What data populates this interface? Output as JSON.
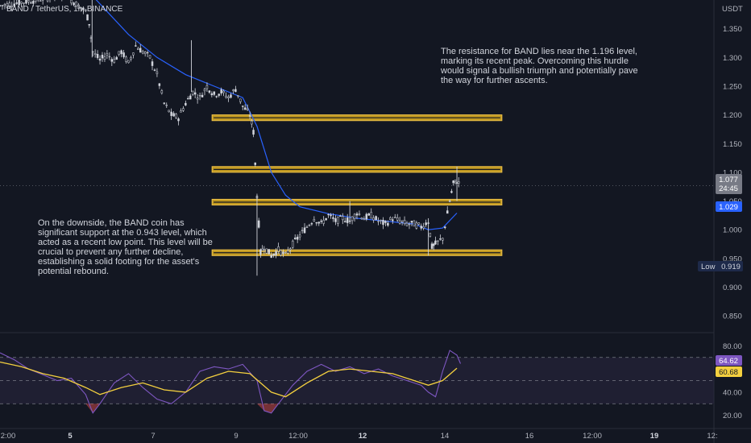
{
  "header": {
    "title": "BAND / TetherUS, 1h, BINANCE",
    "currency": "USDT"
  },
  "annotations": {
    "resistance_text": "The resistance for BAND lies near the 1.196 level, marking its recent peak. Overcoming this hurdle would signal a bullish triumph and potentially pave the way for further ascents.",
    "support_text": "On the downside, the BAND coin has significant support at the 0.943 level, which acted as a recent low point. This level will be crucial to prevent any further decline, establishing a solid footing for the asset's potential rebound."
  },
  "badges": {
    "price": "1.077",
    "countdown": "24:45",
    "ma": "1.029",
    "low_label": "Low",
    "low_value": "0.919",
    "rsi": "64.62",
    "rsi_ma": "60.68"
  },
  "colors": {
    "background": "#131722",
    "candle": "#d1d4dc",
    "ma_line": "#2962ff",
    "zone_fill": "#e0b021",
    "zone_border": "#f0c34a",
    "rsi_line": "#7e57c2",
    "rsi_ma": "#f4d03f",
    "rsi_band": "#2a2740"
  },
  "chart_data": {
    "type": "candlestick",
    "symbol": "BAND / TetherUS",
    "interval": "1h",
    "exchange": "BINANCE",
    "y_axis": {
      "ticks": [
        1.35,
        1.3,
        1.25,
        1.2,
        1.15,
        1.1,
        1.05,
        1.0,
        0.95,
        0.9,
        0.85
      ],
      "tick_labels": [
        "1.350",
        "1.300",
        "1.250",
        "1.200",
        "1.150",
        "1.100",
        "1.050",
        "1.000",
        "0.950",
        "0.900",
        "0.850"
      ],
      "range": [
        0.825,
        1.4
      ]
    },
    "x_axis": {
      "ticks": [
        {
          "label": "2:00",
          "bold": false
        },
        {
          "label": "5",
          "bold": true
        },
        {
          "label": "7",
          "bold": false
        },
        {
          "label": "9",
          "bold": false
        },
        {
          "label": "12:00",
          "bold": false
        },
        {
          "label": "12",
          "bold": true
        },
        {
          "label": "14",
          "bold": false
        },
        {
          "label": "16",
          "bold": false
        },
        {
          "label": "12:00",
          "bold": false
        },
        {
          "label": "19",
          "bold": true
        },
        {
          "label": "12:",
          "bold": false
        }
      ]
    },
    "price_path": [
      [
        0.0,
        1.39
      ],
      [
        0.05,
        1.4
      ],
      [
        0.09,
        1.41
      ],
      [
        0.12,
        1.38
      ],
      [
        0.125,
        1.36
      ],
      [
        0.13,
        1.31
      ],
      [
        0.14,
        1.295
      ],
      [
        0.15,
        1.305
      ],
      [
        0.16,
        1.295
      ],
      [
        0.17,
        1.31
      ],
      [
        0.18,
        1.29
      ],
      [
        0.19,
        1.32
      ],
      [
        0.2,
        1.31
      ],
      [
        0.21,
        1.3
      ],
      [
        0.22,
        1.27
      ],
      [
        0.23,
        1.22
      ],
      [
        0.24,
        1.2
      ],
      [
        0.25,
        1.195
      ],
      [
        0.26,
        1.22
      ],
      [
        0.27,
        1.24
      ],
      [
        0.28,
        1.23
      ],
      [
        0.29,
        1.25
      ],
      [
        0.3,
        1.235
      ],
      [
        0.31,
        1.24
      ],
      [
        0.32,
        1.23
      ],
      [
        0.33,
        1.245
      ],
      [
        0.34,
        1.215
      ],
      [
        0.35,
        1.2
      ],
      [
        0.355,
        1.17
      ],
      [
        0.36,
        1.06
      ],
      [
        0.365,
        0.96
      ],
      [
        0.37,
        0.97
      ],
      [
        0.38,
        0.955
      ],
      [
        0.39,
        0.965
      ],
      [
        0.4,
        0.955
      ],
      [
        0.41,
        0.975
      ],
      [
        0.42,
        0.99
      ],
      [
        0.43,
        1.005
      ],
      [
        0.44,
        1.02
      ],
      [
        0.45,
        1.01
      ],
      [
        0.46,
        1.025
      ],
      [
        0.47,
        1.015
      ],
      [
        0.48,
        1.02
      ],
      [
        0.49,
        1.015
      ],
      [
        0.5,
        1.03
      ],
      [
        0.51,
        1.02
      ],
      [
        0.52,
        1.025
      ],
      [
        0.53,
        1.015
      ],
      [
        0.54,
        1.01
      ],
      [
        0.55,
        1.02
      ],
      [
        0.56,
        1.015
      ],
      [
        0.57,
        1.01
      ],
      [
        0.58,
        1.01
      ],
      [
        0.59,
        1.005
      ],
      [
        0.6,
        1.015
      ],
      [
        0.605,
        0.97
      ],
      [
        0.61,
        0.975
      ],
      [
        0.62,
        0.985
      ],
      [
        0.63,
        1.05
      ],
      [
        0.635,
        1.08
      ],
      [
        0.64,
        1.085
      ],
      [
        0.645,
        1.077
      ]
    ],
    "moving_average_path": [
      [
        0.12,
        1.42
      ],
      [
        0.15,
        1.38
      ],
      [
        0.18,
        1.34
      ],
      [
        0.22,
        1.3
      ],
      [
        0.26,
        1.27
      ],
      [
        0.3,
        1.25
      ],
      [
        0.34,
        1.23
      ],
      [
        0.36,
        1.18
      ],
      [
        0.38,
        1.1
      ],
      [
        0.4,
        1.06
      ],
      [
        0.42,
        1.04
      ],
      [
        0.46,
        1.028
      ],
      [
        0.5,
        1.02
      ],
      [
        0.54,
        1.015
      ],
      [
        0.58,
        1.01
      ],
      [
        0.6,
        1.0
      ],
      [
        0.62,
        1.003
      ],
      [
        0.64,
        1.029
      ]
    ],
    "zones": [
      {
        "name": "resistance",
        "low": 1.19,
        "high": 1.2,
        "x_start": 0.297,
        "x_end": 0.703
      },
      {
        "name": "upper",
        "low": 1.1,
        "high": 1.11,
        "x_start": 0.297,
        "x_end": 0.703
      },
      {
        "name": "mid",
        "low": 1.043,
        "high": 1.053,
        "x_start": 0.297,
        "x_end": 0.703
      },
      {
        "name": "support",
        "low": 0.955,
        "high": 0.965,
        "x_start": 0.297,
        "x_end": 0.703
      }
    ],
    "rsi": {
      "ticks": [
        80,
        60,
        40,
        20
      ],
      "tick_labels": [
        "80.00",
        "60.00",
        "40.00",
        "20.00"
      ],
      "range": [
        10,
        90
      ],
      "band": [
        30,
        70
      ],
      "values": [
        [
          0.0,
          74
        ],
        [
          0.02,
          68
        ],
        [
          0.04,
          60
        ],
        [
          0.06,
          55
        ],
        [
          0.08,
          50
        ],
        [
          0.1,
          52
        ],
        [
          0.12,
          38
        ],
        [
          0.13,
          22
        ],
        [
          0.14,
          30
        ],
        [
          0.16,
          48
        ],
        [
          0.18,
          56
        ],
        [
          0.2,
          44
        ],
        [
          0.22,
          34
        ],
        [
          0.24,
          30
        ],
        [
          0.26,
          40
        ],
        [
          0.28,
          58
        ],
        [
          0.3,
          62
        ],
        [
          0.32,
          60
        ],
        [
          0.34,
          64
        ],
        [
          0.36,
          50
        ],
        [
          0.37,
          24
        ],
        [
          0.38,
          22
        ],
        [
          0.39,
          30
        ],
        [
          0.41,
          46
        ],
        [
          0.43,
          58
        ],
        [
          0.45,
          64
        ],
        [
          0.47,
          58
        ],
        [
          0.49,
          62
        ],
        [
          0.51,
          56
        ],
        [
          0.53,
          60
        ],
        [
          0.55,
          54
        ],
        [
          0.57,
          50
        ],
        [
          0.59,
          46
        ],
        [
          0.6,
          40
        ],
        [
          0.61,
          36
        ],
        [
          0.62,
          58
        ],
        [
          0.63,
          76
        ],
        [
          0.64,
          72
        ],
        [
          0.645,
          64.62
        ]
      ],
      "ma": [
        [
          0.0,
          66
        ],
        [
          0.03,
          62
        ],
        [
          0.06,
          56
        ],
        [
          0.09,
          52
        ],
        [
          0.12,
          44
        ],
        [
          0.14,
          38
        ],
        [
          0.17,
          44
        ],
        [
          0.2,
          48
        ],
        [
          0.23,
          42
        ],
        [
          0.26,
          40
        ],
        [
          0.29,
          52
        ],
        [
          0.32,
          58
        ],
        [
          0.35,
          56
        ],
        [
          0.38,
          40
        ],
        [
          0.4,
          36
        ],
        [
          0.43,
          48
        ],
        [
          0.46,
          58
        ],
        [
          0.49,
          60
        ],
        [
          0.52,
          58
        ],
        [
          0.55,
          56
        ],
        [
          0.58,
          50
        ],
        [
          0.6,
          46
        ],
        [
          0.62,
          50
        ],
        [
          0.64,
          60.68
        ]
      ]
    }
  }
}
